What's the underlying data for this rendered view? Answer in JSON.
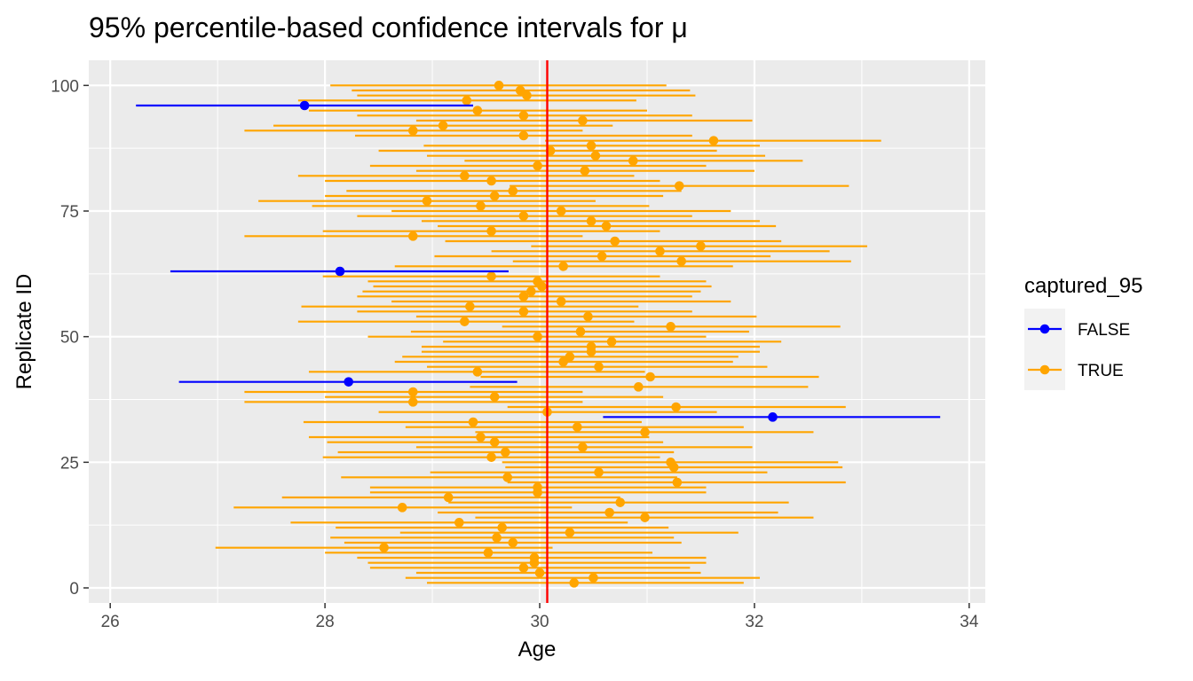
{
  "chart_data": {
    "type": "scatter",
    "title": "95% percentile-based confidence intervals for μ",
    "xlabel": "Age",
    "ylabel": "Replicate ID",
    "xlim": [
      25.8,
      34.15
    ],
    "ylim": [
      -3,
      105
    ],
    "x_ticks": [
      "26",
      "28",
      "30",
      "32",
      "34"
    ],
    "y_ticks": [
      "0",
      "25",
      "50",
      "75",
      "100"
    ],
    "x_tick_values": [
      26,
      28,
      30,
      32,
      34
    ],
    "y_tick_values": [
      0,
      25,
      50,
      75,
      100
    ],
    "grid": true,
    "reference_line": {
      "x": 30.07,
      "color": "#ff0000"
    },
    "legend": {
      "title": "captured_95",
      "position": "right",
      "entries": [
        {
          "label": "FALSE",
          "color": "#0000ff"
        },
        {
          "label": "TRUE",
          "color": "#ffa500"
        }
      ]
    },
    "columns": [
      "replicate",
      "lower",
      "estimate",
      "upper",
      "captured_95"
    ],
    "rows": [
      [
        1,
        28.95,
        30.32,
        31.9,
        "TRUE"
      ],
      [
        2,
        28.75,
        30.5,
        32.05,
        "TRUE"
      ],
      [
        3,
        28.85,
        30.0,
        31.5,
        "TRUE"
      ],
      [
        4,
        28.42,
        29.85,
        31.4,
        "TRUE"
      ],
      [
        5,
        28.4,
        29.95,
        31.55,
        "TRUE"
      ],
      [
        6,
        28.3,
        29.95,
        31.55,
        "TRUE"
      ],
      [
        7,
        28.0,
        29.52,
        31.05,
        "TRUE"
      ],
      [
        8,
        26.98,
        28.55,
        30.12,
        "TRUE"
      ],
      [
        9,
        28.18,
        29.75,
        31.32,
        "TRUE"
      ],
      [
        10,
        28.05,
        29.6,
        31.25,
        "TRUE"
      ],
      [
        11,
        28.7,
        30.28,
        31.85,
        "TRUE"
      ],
      [
        12,
        28.1,
        29.65,
        31.2,
        "TRUE"
      ],
      [
        13,
        27.68,
        29.25,
        30.82,
        "TRUE"
      ],
      [
        14,
        29.4,
        30.98,
        32.55,
        "TRUE"
      ],
      [
        15,
        29.05,
        30.65,
        32.22,
        "TRUE"
      ],
      [
        16,
        27.15,
        28.72,
        30.3,
        "TRUE"
      ],
      [
        17,
        29.15,
        30.75,
        32.32,
        "TRUE"
      ],
      [
        18,
        27.6,
        29.15,
        30.75,
        "TRUE"
      ],
      [
        19,
        28.42,
        29.98,
        31.55,
        "TRUE"
      ],
      [
        20,
        28.42,
        29.98,
        31.55,
        "TRUE"
      ],
      [
        21,
        29.7,
        31.28,
        32.85,
        "TRUE"
      ],
      [
        22,
        28.15,
        29.7,
        31.28,
        "TRUE"
      ],
      [
        23,
        28.98,
        30.55,
        32.12,
        "TRUE"
      ],
      [
        24,
        29.68,
        31.25,
        32.82,
        "TRUE"
      ],
      [
        25,
        29.65,
        31.22,
        32.78,
        "TRUE"
      ],
      [
        26,
        27.98,
        29.55,
        31.12,
        "TRUE"
      ],
      [
        27,
        28.12,
        29.68,
        31.25,
        "TRUE"
      ],
      [
        28,
        28.85,
        30.4,
        31.98,
        "TRUE"
      ],
      [
        29,
        28.02,
        29.58,
        31.15,
        "TRUE"
      ],
      [
        30,
        27.85,
        29.45,
        31.02,
        "TRUE"
      ],
      [
        31,
        29.4,
        30.98,
        32.55,
        "TRUE"
      ],
      [
        32,
        28.75,
        30.35,
        31.9,
        "TRUE"
      ],
      [
        33,
        27.8,
        29.38,
        30.95,
        "TRUE"
      ],
      [
        34,
        30.59,
        32.17,
        33.73,
        "FALSE"
      ],
      [
        35,
        28.5,
        30.07,
        31.65,
        "TRUE"
      ],
      [
        36,
        29.7,
        31.27,
        32.85,
        "TRUE"
      ],
      [
        37,
        27.25,
        28.82,
        30.4,
        "TRUE"
      ],
      [
        38,
        28.0,
        29.58,
        31.15,
        "TRUE"
      ],
      [
        39,
        27.25,
        28.82,
        30.4,
        "TRUE"
      ],
      [
        40,
        29.35,
        30.92,
        32.5,
        "TRUE"
      ],
      [
        41,
        26.64,
        28.22,
        29.79,
        "FALSE"
      ],
      [
        42,
        29.45,
        31.03,
        32.6,
        "TRUE"
      ],
      [
        43,
        27.85,
        29.42,
        30.98,
        "TRUE"
      ],
      [
        44,
        28.95,
        30.55,
        32.12,
        "TRUE"
      ],
      [
        45,
        28.65,
        30.22,
        31.8,
        "TRUE"
      ],
      [
        46,
        28.72,
        30.28,
        31.85,
        "TRUE"
      ],
      [
        47,
        28.9,
        30.48,
        32.05,
        "TRUE"
      ],
      [
        48,
        28.9,
        30.48,
        32.05,
        "TRUE"
      ],
      [
        49,
        29.1,
        30.67,
        32.25,
        "TRUE"
      ],
      [
        50,
        28.4,
        29.98,
        31.55,
        "TRUE"
      ],
      [
        51,
        28.8,
        30.38,
        31.95,
        "TRUE"
      ],
      [
        52,
        29.65,
        31.22,
        32.8,
        "TRUE"
      ],
      [
        53,
        27.75,
        29.3,
        30.88,
        "TRUE"
      ],
      [
        54,
        28.85,
        30.45,
        32.02,
        "TRUE"
      ],
      [
        55,
        28.3,
        29.85,
        31.42,
        "TRUE"
      ],
      [
        56,
        27.78,
        29.35,
        30.92,
        "TRUE"
      ],
      [
        57,
        28.62,
        30.2,
        31.78,
        "TRUE"
      ],
      [
        58,
        28.3,
        29.85,
        31.42,
        "TRUE"
      ],
      [
        59,
        28.35,
        29.92,
        31.5,
        "TRUE"
      ],
      [
        60,
        28.45,
        30.02,
        31.6,
        "TRUE"
      ],
      [
        61,
        28.4,
        29.98,
        31.55,
        "TRUE"
      ],
      [
        62,
        27.98,
        29.55,
        31.12,
        "TRUE"
      ],
      [
        63,
        26.56,
        28.14,
        29.71,
        "FALSE"
      ],
      [
        64,
        28.65,
        30.22,
        31.8,
        "TRUE"
      ],
      [
        65,
        29.75,
        31.32,
        32.9,
        "TRUE"
      ],
      [
        66,
        29.02,
        30.58,
        32.15,
        "TRUE"
      ],
      [
        67,
        29.55,
        31.12,
        32.7,
        "TRUE"
      ],
      [
        68,
        29.92,
        31.5,
        33.05,
        "TRUE"
      ],
      [
        69,
        29.12,
        30.7,
        32.25,
        "TRUE"
      ],
      [
        70,
        27.25,
        28.82,
        30.4,
        "TRUE"
      ],
      [
        71,
        27.98,
        29.55,
        31.12,
        "TRUE"
      ],
      [
        72,
        29.05,
        30.62,
        32.2,
        "TRUE"
      ],
      [
        73,
        28.9,
        30.48,
        32.05,
        "TRUE"
      ],
      [
        74,
        28.3,
        29.85,
        31.42,
        "TRUE"
      ],
      [
        75,
        28.62,
        30.2,
        31.78,
        "TRUE"
      ],
      [
        76,
        27.88,
        29.45,
        31.02,
        "TRUE"
      ],
      [
        77,
        27.38,
        28.95,
        30.52,
        "TRUE"
      ],
      [
        78,
        28.0,
        29.58,
        31.15,
        "TRUE"
      ],
      [
        79,
        28.2,
        29.75,
        31.32,
        "TRUE"
      ],
      [
        80,
        29.72,
        31.3,
        32.88,
        "TRUE"
      ],
      [
        81,
        28.0,
        29.55,
        31.12,
        "TRUE"
      ],
      [
        82,
        27.75,
        29.3,
        30.88,
        "TRUE"
      ],
      [
        83,
        28.85,
        30.42,
        32.0,
        "TRUE"
      ],
      [
        84,
        28.42,
        29.98,
        31.55,
        "TRUE"
      ],
      [
        85,
        29.3,
        30.87,
        32.45,
        "TRUE"
      ],
      [
        86,
        28.95,
        30.52,
        32.1,
        "TRUE"
      ],
      [
        87,
        28.5,
        30.1,
        31.65,
        "TRUE"
      ],
      [
        88,
        28.92,
        30.48,
        32.05,
        "TRUE"
      ],
      [
        89,
        30.05,
        31.62,
        33.18,
        "TRUE"
      ],
      [
        90,
        28.28,
        29.85,
        31.42,
        "TRUE"
      ],
      [
        91,
        27.25,
        28.82,
        30.4,
        "TRUE"
      ],
      [
        92,
        27.52,
        29.1,
        30.68,
        "TRUE"
      ],
      [
        93,
        28.85,
        30.4,
        31.98,
        "TRUE"
      ],
      [
        94,
        28.3,
        29.85,
        31.42,
        "TRUE"
      ],
      [
        95,
        27.85,
        29.42,
        31.0,
        "TRUE"
      ],
      [
        96,
        26.24,
        27.81,
        29.38,
        "FALSE"
      ],
      [
        97,
        27.75,
        29.32,
        30.9,
        "TRUE"
      ],
      [
        98,
        28.3,
        29.88,
        31.45,
        "TRUE"
      ],
      [
        99,
        28.25,
        29.82,
        31.4,
        "TRUE"
      ],
      [
        100,
        28.05,
        29.62,
        31.18,
        "TRUE"
      ]
    ]
  }
}
